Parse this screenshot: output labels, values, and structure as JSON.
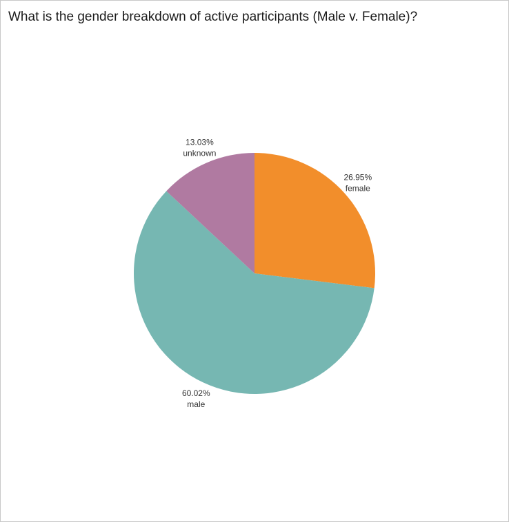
{
  "chart_data": {
    "type": "pie",
    "title": "What is the gender breakdown of active participants (Male v. Female)?",
    "slices": [
      {
        "label": "female",
        "value": 26.95,
        "display": "26.95%",
        "color": "#f28e2b"
      },
      {
        "label": "male",
        "value": 60.02,
        "display": "60.02%",
        "color": "#76b7b2"
      },
      {
        "label": "unknown",
        "value": 13.03,
        "display": "13.03%",
        "color": "#b07aa1"
      }
    ]
  }
}
